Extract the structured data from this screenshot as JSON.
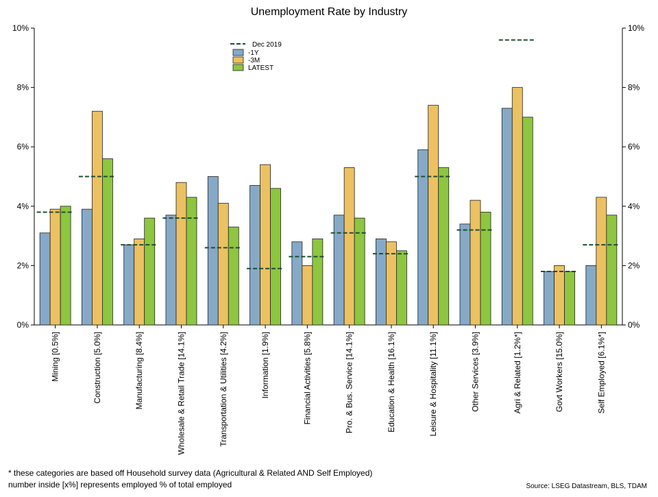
{
  "chart_data": {
    "type": "bar",
    "title": "Unemployment Rate by Industry",
    "categories": [
      "Mining [0.5%]",
      "Construction [5.0%]",
      "Manufacturing [8.4%]",
      "Wholesale & Retail Trade [14.1%]",
      "Transportation & Utilities [4.2%]",
      "Information [1.9%]",
      "Financial Activities [5.8%]",
      "Pro. & Bus. Service [14.1%]",
      "Education & Health [16.1%]",
      "Leisure & Hospitality [11.1%]",
      "Other Services [3.9%]",
      "Agri & Related [1.2%*]",
      "Govt Workers [15.0%]",
      "Self Employed [6.1%*]"
    ],
    "series": [
      {
        "name": "-1Y",
        "color": "#85a9c7",
        "values": [
          3.1,
          3.9,
          2.7,
          3.7,
          5.0,
          4.7,
          2.8,
          3.7,
          2.9,
          5.9,
          3.4,
          7.3,
          1.8,
          2.0
        ]
      },
      {
        "name": "-3M",
        "color": "#ecc161",
        "values": [
          3.9,
          7.2,
          2.9,
          4.8,
          4.1,
          5.4,
          2.0,
          5.3,
          2.8,
          7.4,
          4.2,
          8.0,
          2.0,
          4.3
        ]
      },
      {
        "name": "LATEST",
        "color": "#8dc63f",
        "values": [
          4.0,
          5.6,
          3.6,
          4.3,
          3.3,
          4.6,
          2.9,
          3.6,
          2.5,
          5.3,
          3.8,
          7.0,
          1.8,
          3.7
        ]
      }
    ],
    "reference": {
      "name": "Dec 2019",
      "color": "#1f4d2e",
      "values": [
        3.8,
        5.0,
        2.7,
        3.6,
        2.6,
        1.9,
        2.3,
        3.1,
        2.4,
        5.0,
        3.2,
        9.6,
        1.8,
        2.7
      ]
    },
    "ylim": [
      0,
      10
    ],
    "yticks": [
      "0%",
      "2%",
      "4%",
      "6%",
      "8%",
      "10%"
    ],
    "grid": false,
    "legend_position": "top-left-center"
  },
  "footnotes": {
    "line1": "* these categories are based off Household survey data (Agricultural & Related AND Self Employed)",
    "line2": "number inside [x%] represents employed % of total employed",
    "source": "Source: LSEG Datastream, BLS, TDAM"
  }
}
